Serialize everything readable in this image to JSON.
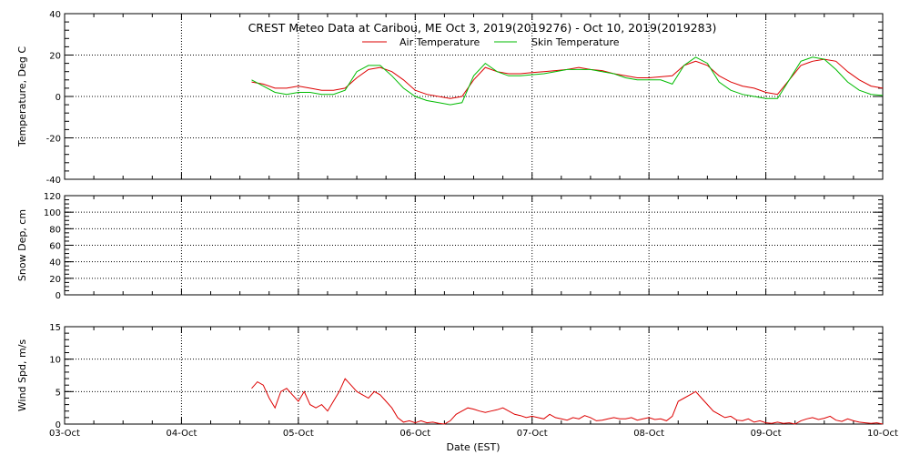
{
  "figure": {
    "title": "CREST Meteo Data at Caribou, ME   Oct  3, 2019(2019276) - Oct 10, 2019(2019283)",
    "xlabel": "Date (EST)",
    "background": "#ffffff",
    "line_color": "#000000"
  },
  "chart_data": [
    {
      "type": "line",
      "id": "temperature",
      "ylabel": "Temperature, Deg C",
      "ylim": [
        -40,
        40
      ],
      "yticks": [
        -40,
        -20,
        0,
        20,
        40
      ],
      "xlim": [
        0,
        7
      ],
      "x_ticks": [
        "03-Oct",
        "04-Oct",
        "05-Oct",
        "06-Oct",
        "07-Oct",
        "08-Oct",
        "09-Oct",
        "10-Oct"
      ],
      "grid": true,
      "legend_position": "top-center",
      "series": [
        {
          "name": "Air Temperature",
          "color": "#dd0000",
          "x": [
            1.6,
            1.7,
            1.8,
            1.9,
            2.0,
            2.1,
            2.2,
            2.3,
            2.4,
            2.5,
            2.6,
            2.7,
            2.8,
            2.9,
            3.0,
            3.1,
            3.2,
            3.3,
            3.4,
            3.5,
            3.6,
            3.7,
            3.8,
            3.9,
            4.0,
            4.1,
            4.2,
            4.3,
            4.4,
            4.5,
            4.6,
            4.7,
            4.8,
            4.9,
            5.0,
            5.1,
            5.2,
            5.3,
            5.4,
            5.5,
            5.6,
            5.7,
            5.8,
            5.9,
            6.0,
            6.1,
            6.2,
            6.3,
            6.4,
            6.5,
            6.6,
            6.7,
            6.8,
            6.9,
            7.0
          ],
          "y": [
            7,
            6,
            4,
            4,
            5,
            4,
            3,
            3,
            4,
            9,
            13,
            14,
            12,
            8,
            3,
            1,
            0,
            -1,
            0,
            8,
            14,
            12,
            11,
            11,
            11.5,
            12,
            12.5,
            13,
            14,
            13,
            12.5,
            11,
            10,
            9,
            9,
            9.5,
            10,
            15,
            17,
            15,
            10,
            7,
            5,
            4,
            2,
            1,
            8,
            15,
            17,
            18,
            17,
            12,
            8,
            5,
            4
          ]
        },
        {
          "name": "Skin Temperature",
          "color": "#00bb00",
          "x": [
            1.6,
            1.7,
            1.8,
            1.9,
            2.0,
            2.1,
            2.2,
            2.3,
            2.4,
            2.5,
            2.6,
            2.7,
            2.8,
            2.9,
            3.0,
            3.1,
            3.2,
            3.3,
            3.4,
            3.5,
            3.6,
            3.7,
            3.8,
            3.9,
            4.0,
            4.1,
            4.2,
            4.3,
            4.4,
            4.5,
            4.6,
            4.7,
            4.8,
            4.9,
            5.0,
            5.1,
            5.2,
            5.3,
            5.4,
            5.5,
            5.6,
            5.7,
            5.8,
            5.9,
            6.0,
            6.1,
            6.2,
            6.3,
            6.4,
            6.5,
            6.6,
            6.7,
            6.8,
            6.9,
            7.0
          ],
          "y": [
            8,
            5,
            2,
            1,
            2,
            2,
            1,
            1,
            3,
            12,
            15,
            15,
            10,
            4,
            0,
            -2,
            -3,
            -4,
            -3,
            10,
            16,
            12,
            10,
            10,
            10.5,
            11,
            12,
            13,
            13,
            13,
            12,
            11,
            9,
            8,
            8,
            8,
            6,
            15,
            19,
            16,
            7,
            3,
            1,
            0,
            -1,
            -1,
            8,
            17,
            19,
            18,
            13,
            7,
            3,
            1,
            0.5
          ]
        }
      ]
    },
    {
      "type": "line",
      "id": "snow",
      "ylabel": "Snow Dep, cm",
      "ylim": [
        0,
        120
      ],
      "yticks": [
        0,
        20,
        40,
        60,
        80,
        100,
        120
      ],
      "xlim": [
        0,
        7
      ],
      "grid": true,
      "series": []
    },
    {
      "type": "line",
      "id": "wind",
      "ylabel": "Wind Spd, m/s",
      "ylim": [
        0,
        15
      ],
      "yticks": [
        0,
        5,
        10,
        15
      ],
      "xlim": [
        0,
        7
      ],
      "grid": true,
      "series": [
        {
          "color": "#dd0000",
          "x": [
            1.6,
            1.65,
            1.7,
            1.75,
            1.8,
            1.85,
            1.9,
            1.95,
            2.0,
            2.05,
            2.1,
            2.15,
            2.2,
            2.25,
            2.3,
            2.35,
            2.4,
            2.45,
            2.5,
            2.55,
            2.6,
            2.65,
            2.7,
            2.75,
            2.8,
            2.85,
            2.9,
            2.95,
            3.0,
            3.05,
            3.1,
            3.15,
            3.2,
            3.25,
            3.3,
            3.35,
            3.4,
            3.45,
            3.5,
            3.55,
            3.6,
            3.65,
            3.7,
            3.75,
            3.8,
            3.85,
            3.9,
            3.95,
            4.0,
            4.05,
            4.1,
            4.15,
            4.2,
            4.25,
            4.3,
            4.35,
            4.4,
            4.45,
            4.5,
            4.55,
            4.6,
            4.65,
            4.7,
            4.75,
            4.8,
            4.85,
            4.9,
            4.95,
            5.0,
            5.05,
            5.1,
            5.15,
            5.2,
            5.25,
            5.3,
            5.35,
            5.4,
            5.45,
            5.5,
            5.55,
            5.6,
            5.65,
            5.7,
            5.75,
            5.8,
            5.85,
            5.9,
            5.95,
            6.0,
            6.05,
            6.1,
            6.15,
            6.2,
            6.25,
            6.3,
            6.35,
            6.4,
            6.45,
            6.5,
            6.55,
            6.6,
            6.65,
            6.7,
            6.75,
            6.8,
            6.85,
            6.9,
            6.95,
            7.0
          ],
          "y": [
            5.5,
            6.5,
            6,
            4,
            2.5,
            5,
            5.5,
            4.5,
            3.5,
            5,
            3,
            2.5,
            3,
            2,
            3.5,
            5,
            7,
            6,
            5,
            4.5,
            4,
            5,
            4.5,
            3.5,
            2.5,
            1,
            0.3,
            0.5,
            0.2,
            0.5,
            0.2,
            0.3,
            0.1,
            0,
            0.5,
            1.5,
            2,
            2.5,
            2.3,
            2,
            1.8,
            2,
            2.2,
            2.5,
            2,
            1.5,
            1.3,
            1,
            1.2,
            1,
            0.8,
            1.5,
            1,
            0.8,
            0.6,
            1,
            0.8,
            1.3,
            1,
            0.5,
            0.6,
            0.8,
            1,
            0.8,
            0.8,
            1,
            0.6,
            0.8,
            1,
            0.7,
            0.8,
            0.5,
            1.2,
            3.5,
            4,
            4.5,
            5,
            4,
            3,
            2,
            1.5,
            1,
            1.2,
            0.6,
            0.5,
            0.8,
            0.3,
            0.5,
            0.2,
            0.1,
            0.3,
            0.1,
            0.2,
            0,
            0.5,
            0.8,
            1,
            0.7,
            0.9,
            1.2,
            0.6,
            0.4,
            0.8,
            0.5,
            0.3,
            0.2,
            0.1,
            0.2,
            0
          ]
        }
      ]
    }
  ]
}
